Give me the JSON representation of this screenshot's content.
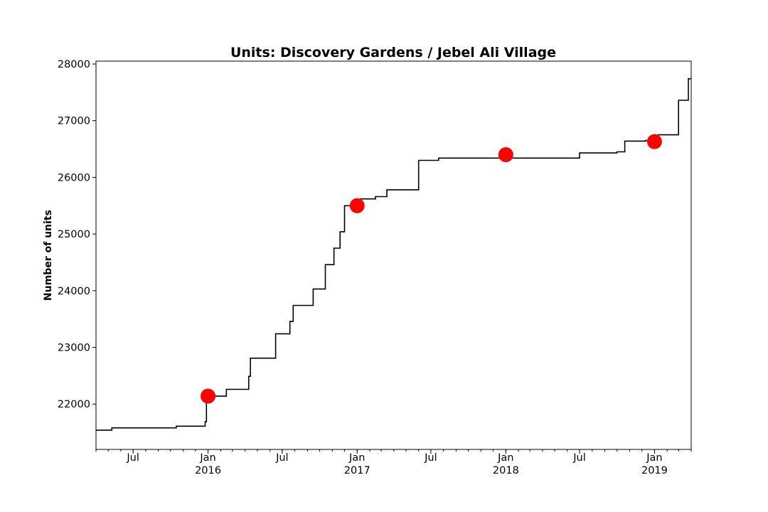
{
  "chart_data": {
    "type": "line",
    "title": "Units: Discovery Gardens / Jebel Ali Village",
    "xlabel": "",
    "ylabel": "Number of units",
    "xlim": [
      "2015-04-01",
      "2019-04-01"
    ],
    "ylim": [
      21200,
      28050
    ],
    "y_ticks": [
      22000,
      23000,
      24000,
      25000,
      26000,
      27000,
      28000
    ],
    "x_ticks": [
      {
        "date": "2015-07-01",
        "label": "Jul",
        "sublabel": ""
      },
      {
        "date": "2016-01-01",
        "label": "Jan",
        "sublabel": "2016"
      },
      {
        "date": "2016-07-01",
        "label": "Jul",
        "sublabel": ""
      },
      {
        "date": "2017-01-01",
        "label": "Jan",
        "sublabel": "2017"
      },
      {
        "date": "2017-07-01",
        "label": "Jul",
        "sublabel": ""
      },
      {
        "date": "2018-01-01",
        "label": "Jan",
        "sublabel": "2018"
      },
      {
        "date": "2018-07-01",
        "label": "Jul",
        "sublabel": ""
      },
      {
        "date": "2019-01-01",
        "label": "Jan",
        "sublabel": "2019"
      }
    ],
    "grid": false,
    "line_color": "#000000",
    "marker_color": "#ff0000",
    "series": [
      {
        "style": "step",
        "points": [
          [
            "2015-04-01",
            21540
          ],
          [
            "2015-05-10",
            21580
          ],
          [
            "2015-10-15",
            21610
          ],
          [
            "2015-12-25",
            21690
          ],
          [
            "2015-12-28",
            22140
          ],
          [
            "2016-02-15",
            22260
          ],
          [
            "2016-04-10",
            22490
          ],
          [
            "2016-04-14",
            22810
          ],
          [
            "2016-06-15",
            23240
          ],
          [
            "2016-07-20",
            23460
          ],
          [
            "2016-07-28",
            23740
          ],
          [
            "2016-09-15",
            24030
          ],
          [
            "2016-10-15",
            24460
          ],
          [
            "2016-11-05",
            24750
          ],
          [
            "2016-11-20",
            25040
          ],
          [
            "2016-12-01",
            25500
          ],
          [
            "2017-01-10",
            25620
          ],
          [
            "2017-02-15",
            25660
          ],
          [
            "2017-03-15",
            25780
          ],
          [
            "2017-06-01",
            26300
          ],
          [
            "2017-07-20",
            26340
          ],
          [
            "2018-07-01",
            26430
          ],
          [
            "2018-10-01",
            26450
          ],
          [
            "2018-10-20",
            26640
          ],
          [
            "2018-12-10",
            26650
          ],
          [
            "2019-01-10",
            26750
          ],
          [
            "2019-03-01",
            27360
          ],
          [
            "2019-03-25",
            27740
          ],
          [
            "2019-04-01",
            27740
          ]
        ]
      }
    ],
    "markers": [
      {
        "date": "2016-01-01",
        "value": 22140
      },
      {
        "date": "2017-01-01",
        "value": 25500
      },
      {
        "date": "2018-01-01",
        "value": 26400
      },
      {
        "date": "2019-01-01",
        "value": 26630
      }
    ]
  }
}
